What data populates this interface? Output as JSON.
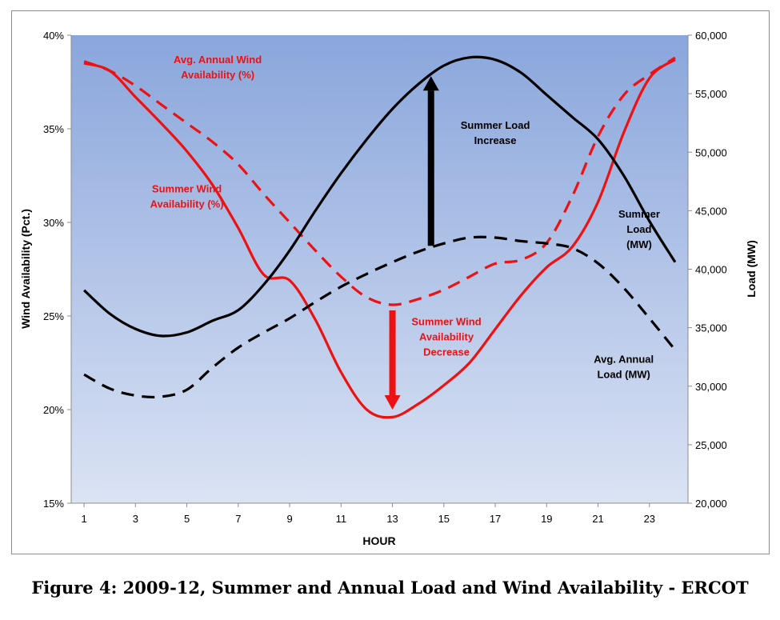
{
  "caption": "Figure 4: 2009-12, Summer and Annual Load and Wind Availability - ERCOT",
  "colors": {
    "wind": "#ee1111",
    "load": "#000000",
    "plot_top": "#8aa6dc",
    "plot_bottom": "#dbe3f4"
  },
  "chart_data": {
    "type": "line",
    "title": "",
    "xlabel": "HOUR",
    "ylabel_left": "Wind Availability (Pct.)",
    "ylabel_right": "Load (MW)",
    "x": [
      1,
      2,
      3,
      4,
      5,
      6,
      7,
      8,
      9,
      10,
      11,
      12,
      13,
      14,
      15,
      16,
      17,
      18,
      19,
      20,
      21,
      22,
      23,
      24
    ],
    "xlim": [
      0.5,
      24.5
    ],
    "xticks": [
      "1",
      "3",
      "5",
      "7",
      "9",
      "11",
      "13",
      "15",
      "17",
      "19",
      "21",
      "23"
    ],
    "ylim_left": [
      15,
      40
    ],
    "yticks_left": [
      "15%",
      "20%",
      "25%",
      "30%",
      "35%",
      "40%"
    ],
    "ylim_right": [
      20000,
      60000
    ],
    "yticks_right": [
      "20,000",
      "25,000",
      "30,000",
      "35,000",
      "40,000",
      "45,000",
      "50,000",
      "55,000",
      "60,000"
    ],
    "grid": false,
    "series": [
      {
        "name": "Summer Wind Availability (%)",
        "axis": "left",
        "color": "red",
        "style": "solid",
        "values": [
          38.5,
          38.1,
          36.7,
          35.3,
          33.8,
          32.0,
          29.7,
          27.2,
          26.9,
          24.8,
          22.0,
          20.0,
          19.6,
          20.3,
          21.3,
          22.5,
          24.3,
          26.1,
          27.6,
          28.7,
          31.1,
          34.8,
          37.7,
          38.7
        ]
      },
      {
        "name": "Avg. Annual Wind Availability (%)",
        "axis": "left",
        "color": "red",
        "style": "dashed",
        "values": [
          38.6,
          38.1,
          37.3,
          36.3,
          35.3,
          34.3,
          33.1,
          31.5,
          30.0,
          28.5,
          27.1,
          26.0,
          25.6,
          25.9,
          26.4,
          27.1,
          27.8,
          28.0,
          28.9,
          31.4,
          34.6,
          36.8,
          37.9,
          38.8
        ]
      },
      {
        "name": "Summer Load (MW)",
        "axis": "right",
        "color": "black",
        "style": "solid",
        "values": [
          38200,
          36200,
          34900,
          34300,
          34600,
          35600,
          36500,
          38700,
          41600,
          45000,
          48200,
          51100,
          53700,
          55800,
          57400,
          58100,
          57900,
          56800,
          54900,
          53000,
          51100,
          48000,
          44100,
          40600
        ]
      },
      {
        "name": "Avg. Annual Load (MW)",
        "axis": "right",
        "color": "black",
        "style": "dashed",
        "values": [
          31000,
          29800,
          29200,
          29100,
          29700,
          31600,
          33300,
          34600,
          35800,
          37200,
          38500,
          39600,
          40600,
          41500,
          42200,
          42700,
          42700,
          42400,
          42200,
          41800,
          40500,
          38400,
          35800,
          33100
        ]
      }
    ],
    "annotations": {
      "avg_wind_label": [
        "Avg. Annual  Wind",
        "Availability (%)"
      ],
      "summer_wind_label": [
        "Summer Wind",
        "Availability (%)"
      ],
      "summer_load_label": [
        "Summer",
        "Load",
        "(MW)"
      ],
      "avg_load_label": [
        "Avg. Annual",
        "Load (MW)"
      ],
      "load_increase_label": [
        "Summer Load",
        "Increase"
      ],
      "wind_decrease_label": [
        "Summer Wind",
        "Availability",
        "Decrease"
      ]
    }
  }
}
